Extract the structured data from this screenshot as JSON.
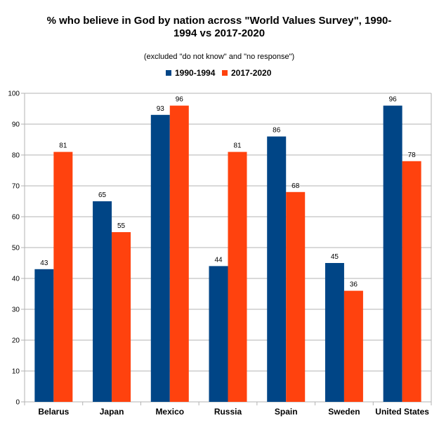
{
  "chart_data": {
    "type": "bar",
    "title_line1": "% who believe in God by nation across \"World Values Survey\", 1990-",
    "title_line2": "1994 vs 2017-2020",
    "subtitle": "(excluded \"do not know\" and \"no response\")",
    "categories": [
      "Belarus",
      "Japan",
      "Mexico",
      "Russia",
      "Spain",
      "Sweden",
      "United States"
    ],
    "series": [
      {
        "name": "1990-1994",
        "color": "#004586",
        "values": [
          43,
          65,
          93,
          44,
          86,
          45,
          96
        ]
      },
      {
        "name": "2017-2020",
        "color": "#ff420e",
        "values": [
          81,
          55,
          96,
          81,
          68,
          36,
          78
        ]
      }
    ],
    "ylim": [
      0,
      100
    ],
    "yticks": [
      0,
      10,
      20,
      30,
      40,
      50,
      60,
      70,
      80,
      90,
      100
    ],
    "grid": true,
    "legend_position": "top-center"
  }
}
